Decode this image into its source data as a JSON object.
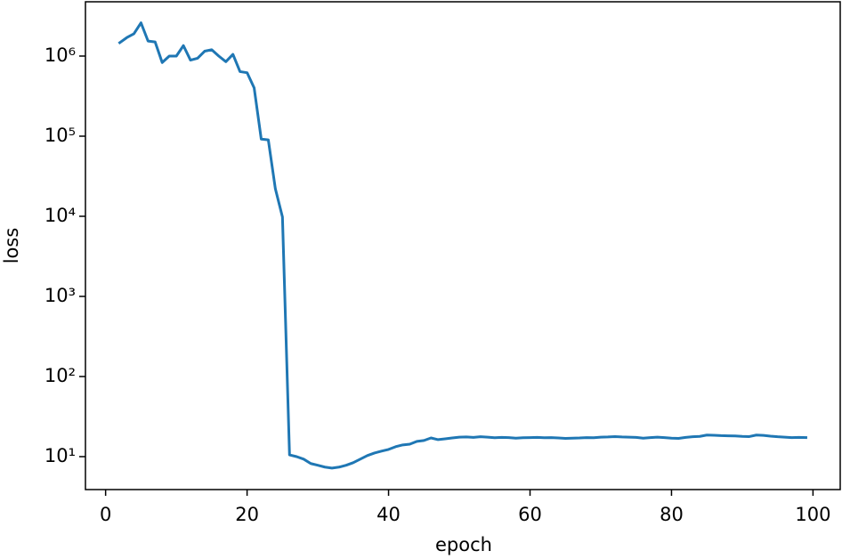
{
  "chart_data": {
    "type": "line",
    "xlabel": "epoch",
    "ylabel": "loss",
    "log_y": true,
    "xlim": [
      -2.85,
      103.85
    ],
    "xticks": [
      0,
      20,
      40,
      60,
      80,
      100
    ],
    "ylim": [
      3.88,
      4760000
    ],
    "yticks": [
      {
        "value": 10,
        "label": "10¹"
      },
      {
        "value": 100,
        "label": "10²"
      },
      {
        "value": 1000,
        "label": "10³"
      },
      {
        "value": 10000,
        "label": "10⁴"
      },
      {
        "value": 100000,
        "label": "10⁵"
      },
      {
        "value": 1000000,
        "label": "10⁶"
      }
    ],
    "x": [
      2,
      3,
      4,
      5,
      6,
      7,
      8,
      9,
      10,
      11,
      12,
      13,
      14,
      15,
      16,
      17,
      18,
      19,
      20,
      21,
      22,
      23,
      24,
      25,
      26,
      27,
      28,
      29,
      30,
      31,
      32,
      33,
      34,
      35,
      36,
      37,
      38,
      39,
      40,
      41,
      42,
      43,
      44,
      45,
      46,
      47,
      48,
      49,
      50,
      51,
      52,
      53,
      54,
      55,
      56,
      57,
      58,
      59,
      60,
      61,
      62,
      63,
      64,
      65,
      66,
      67,
      68,
      69,
      70,
      71,
      72,
      73,
      74,
      75,
      76,
      77,
      78,
      79,
      80,
      81,
      82,
      83,
      84,
      85,
      86,
      87,
      88,
      89,
      90,
      91,
      92,
      93,
      94,
      95,
      96,
      97,
      98,
      99
    ],
    "series": [
      {
        "color": "#1f77b4",
        "values": [
          1470000,
          1700000,
          1900000,
          2600000,
          1540000,
          1500000,
          830000,
          1000000,
          1000000,
          1350000,
          890000,
          940000,
          1150000,
          1200000,
          1000000,
          850000,
          1050000,
          640000,
          620000,
          400000,
          92000,
          90000,
          22000,
          9800,
          10.5,
          10,
          9.3,
          8.2,
          7.8,
          7.4,
          7.2,
          7.4,
          7.8,
          8.4,
          9.3,
          10.3,
          11.1,
          11.7,
          12.3,
          13.3,
          14,
          14.3,
          15.5,
          15.9,
          17.1,
          16.3,
          16.7,
          17.1,
          17.5,
          17.6,
          17.4,
          17.7,
          17.5,
          17.2,
          17.4,
          17.3,
          17.0,
          17.2,
          17.3,
          17.4,
          17.2,
          17.3,
          17.1,
          16.9,
          17.0,
          17.1,
          17.3,
          17.2,
          17.5,
          17.6,
          17.8,
          17.6,
          17.5,
          17.4,
          17.0,
          17.3,
          17.5,
          17.3,
          17.0,
          16.9,
          17.4,
          17.7,
          17.9,
          18.6,
          18.5,
          18.3,
          18.2,
          18.1,
          17.9,
          17.8,
          18.6,
          18.4,
          18.0,
          17.7,
          17.5,
          17.3,
          17.4,
          17.3
        ]
      }
    ]
  }
}
